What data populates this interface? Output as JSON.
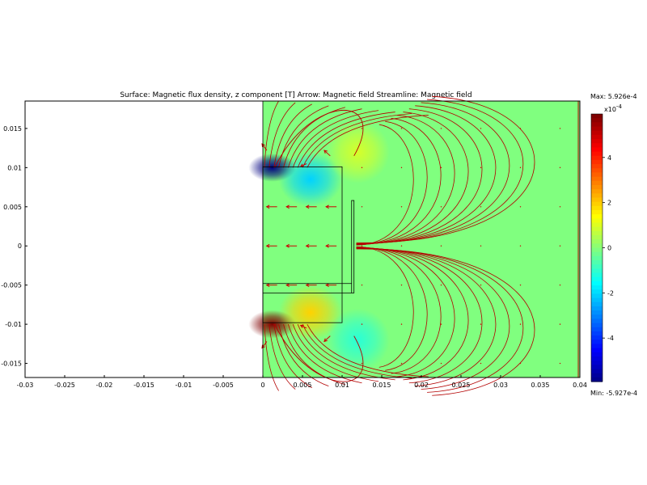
{
  "chart_data": {
    "type": "heatmap",
    "title": "Surface: Magnetic flux density, z component [T]   Arrow: Magnetic field   Streamline: Magnetic field",
    "surface_quantity": "Magnetic flux density, z component",
    "surface_unit": "T",
    "arrow_quantity": "Magnetic field",
    "streamline_quantity": "Magnetic field",
    "xlim": [
      -0.03,
      0.04
    ],
    "ylim": [
      -0.0168,
      0.0185
    ],
    "x_ticks": [
      "-0.03",
      "-0.025",
      "-0.02",
      "-0.015",
      "-0.01",
      "-0.005",
      "0",
      "0.005",
      "0.01",
      "0.015",
      "0.02",
      "0.025",
      "0.03",
      "0.035",
      "0.04"
    ],
    "x_tick_values": [
      -0.03,
      -0.025,
      -0.02,
      -0.015,
      -0.01,
      -0.005,
      0,
      0.005,
      0.01,
      0.015,
      0.02,
      0.025,
      0.03,
      0.035,
      0.04
    ],
    "y_ticks": [
      "0.015",
      "0.01",
      "0.005",
      "0",
      "-0.005",
      "-0.01",
      "-0.015"
    ],
    "y_tick_values": [
      0.015,
      0.01,
      0.005,
      0,
      -0.005,
      -0.01,
      -0.015
    ],
    "domain_x": [
      0,
      0.04
    ],
    "max_label": "Max: 5.926e-4",
    "min_label": "Min: -5.927e-4",
    "colorbar_exponent": "x10",
    "colorbar_exponent_power": "-4",
    "colorbar_ticks": [
      "4",
      "2",
      "0",
      "-2",
      "-4"
    ],
    "colorbar_tick_values": [
      4,
      2,
      0,
      -2,
      -4
    ],
    "colorbar_range": [
      -5.927,
      5.926
    ],
    "magnet_outline": {
      "x": [
        0,
        0.01
      ],
      "y": [
        -0.0098,
        0.0101
      ]
    },
    "coil_outline": {
      "x": [
        0.0112,
        0.0115
      ],
      "y": [
        -0.006,
        0.0058
      ]
    },
    "hotspots": [
      {
        "x": 0.0012,
        "y": 0.01,
        "value": -5.927,
        "sx": 0.003,
        "sy": 0.0018
      },
      {
        "x": 0.0012,
        "y": -0.01,
        "value": 5.926,
        "sx": 0.003,
        "sy": 0.0018
      },
      {
        "x": 0.006,
        "y": 0.0085,
        "value": -2.0,
        "sx": 0.004,
        "sy": 0.0035
      },
      {
        "x": 0.006,
        "y": -0.0085,
        "value": 2.0,
        "sx": 0.004,
        "sy": 0.0035
      },
      {
        "x": 0.012,
        "y": 0.012,
        "value": 1.0,
        "sx": 0.004,
        "sy": 0.004
      },
      {
        "x": 0.012,
        "y": -0.012,
        "value": -1.0,
        "sx": 0.004,
        "sy": 0.004
      }
    ],
    "colors": {
      "background": "#ffffff",
      "streamline": "#b30000",
      "arrow": "#cc0000",
      "neutral": "#7cfc6a",
      "outline": "#000000"
    }
  }
}
